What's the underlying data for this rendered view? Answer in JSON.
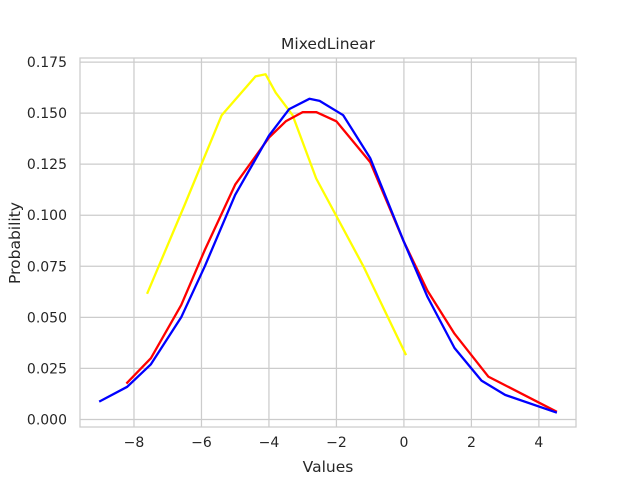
{
  "chart_data": {
    "type": "line",
    "title": "MixedLinear",
    "xlabel": "Values",
    "ylabel": "Probability",
    "xlim": [
      -9.6,
      5.1
    ],
    "ylim": [
      -0.0037,
      0.177
    ],
    "x_ticks": [
      -8,
      -6,
      -4,
      -2,
      0,
      2,
      4
    ],
    "x_tick_labels": [
      "−8",
      "−6",
      "−4",
      "−2",
      "0",
      "2",
      "4"
    ],
    "y_ticks": [
      0.0,
      0.025,
      0.05,
      0.075,
      0.1,
      0.125,
      0.15,
      0.175
    ],
    "y_tick_labels": [
      "0.000",
      "0.025",
      "0.050",
      "0.075",
      "0.100",
      "0.125",
      "0.150",
      "0.175"
    ],
    "grid": true,
    "series": [
      {
        "color": "#ffff00",
        "points": [
          [
            -7.6,
            0.062
          ],
          [
            -6.5,
            0.105
          ],
          [
            -5.4,
            0.149
          ],
          [
            -4.4,
            0.168
          ],
          [
            -4.1,
            0.169
          ],
          [
            -3.8,
            0.16
          ],
          [
            -3.3,
            0.149
          ],
          [
            -2.6,
            0.118
          ],
          [
            -1.2,
            0.075
          ],
          [
            0.05,
            0.032
          ]
        ]
      },
      {
        "color": "#ff0000",
        "points": [
          [
            -8.2,
            0.018
          ],
          [
            -7.5,
            0.03
          ],
          [
            -6.6,
            0.056
          ],
          [
            -5.9,
            0.083
          ],
          [
            -5.0,
            0.115
          ],
          [
            -4.0,
            0.138
          ],
          [
            -3.5,
            0.146
          ],
          [
            -3.0,
            0.1505
          ],
          [
            -2.6,
            0.1505
          ],
          [
            -2.0,
            0.146
          ],
          [
            -1.0,
            0.126
          ],
          [
            0.0,
            0.087
          ],
          [
            0.7,
            0.063
          ],
          [
            1.5,
            0.042
          ],
          [
            2.5,
            0.021
          ],
          [
            4.5,
            0.004
          ]
        ]
      },
      {
        "color": "#0000ff",
        "points": [
          [
            -9.0,
            0.009
          ],
          [
            -8.2,
            0.016
          ],
          [
            -7.5,
            0.027
          ],
          [
            -6.6,
            0.05
          ],
          [
            -5.9,
            0.075
          ],
          [
            -5.0,
            0.11
          ],
          [
            -4.0,
            0.139
          ],
          [
            -3.4,
            0.152
          ],
          [
            -2.8,
            0.157
          ],
          [
            -2.5,
            0.156
          ],
          [
            -1.8,
            0.149
          ],
          [
            -1.0,
            0.128
          ],
          [
            0.0,
            0.087
          ],
          [
            0.7,
            0.06
          ],
          [
            1.5,
            0.035
          ],
          [
            2.3,
            0.019
          ],
          [
            3.0,
            0.012
          ],
          [
            4.5,
            0.0035
          ]
        ]
      }
    ]
  }
}
